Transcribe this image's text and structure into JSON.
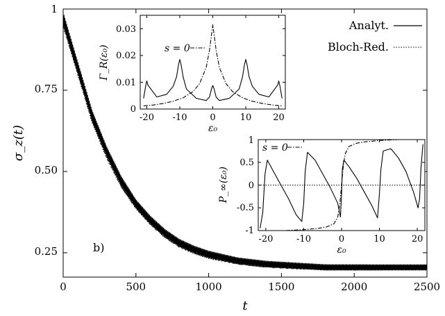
{
  "chart_data": [
    {
      "type": "line",
      "xlabel": "t",
      "ylabel": "σ_z(t)",
      "xlim": [
        0,
        2500
      ],
      "ylim": [
        0.175,
        1.0
      ],
      "xticks": [
        "0",
        "500",
        "1000",
        "1500",
        "2000",
        "2500"
      ],
      "yticks": [
        "0.25",
        "0.50",
        "0.75",
        "1"
      ],
      "panel_label": "b)",
      "legend_position": "top-right",
      "series": [
        {
          "name": "Analyt.",
          "style": "solid",
          "x": [
            0,
            100,
            200,
            300,
            400,
            500,
            600,
            700,
            800,
            900,
            1000,
            1200,
            1400,
            1600,
            1800,
            2000,
            2200,
            2500
          ],
          "y": [
            0.97,
            0.82,
            0.67,
            0.56,
            0.47,
            0.4,
            0.35,
            0.31,
            0.28,
            0.26,
            0.245,
            0.225,
            0.215,
            0.21,
            0.205,
            0.205,
            0.205,
            0.205
          ]
        },
        {
          "name": "Bloch-Red.",
          "style": "dotted",
          "x": [
            0,
            100,
            200,
            300,
            400,
            500,
            600,
            700,
            800,
            900,
            1000,
            1200,
            1400,
            1600,
            1800,
            2000,
            2200,
            2500
          ],
          "y": [
            0.96,
            0.81,
            0.66,
            0.55,
            0.46,
            0.395,
            0.345,
            0.305,
            0.275,
            0.255,
            0.24,
            0.222,
            0.212,
            0.207,
            0.204,
            0.203,
            0.203,
            0.203
          ]
        }
      ]
    },
    {
      "type": "line",
      "xlabel": "ε₀",
      "ylabel": "Γ_R(ε₀)",
      "xlim": [
        -22,
        22
      ],
      "ylim": [
        0,
        0.035
      ],
      "xticks": [
        "-20",
        "-10",
        "0",
        "10",
        "20"
      ],
      "yticks": [
        "0",
        "0.01",
        "0.02",
        "0.03"
      ],
      "legend_position": "top-left",
      "series": [
        {
          "name": "",
          "style": "solid",
          "x": [
            -21,
            -20.3,
            -20,
            -19.7,
            -17,
            -14,
            -12,
            -11,
            -10.4,
            -10,
            -9.6,
            -9,
            -8,
            -5,
            -2,
            -1,
            -0.4,
            0,
            0.4,
            1,
            2,
            5,
            8,
            9,
            9.6,
            10,
            10.4,
            11,
            12,
            14,
            17,
            19.7,
            20,
            20.3,
            21
          ],
          "y": [
            0.004,
            0.009,
            0.0105,
            0.009,
            0.0045,
            0.0055,
            0.0085,
            0.012,
            0.0165,
            0.0185,
            0.0165,
            0.012,
            0.0075,
            0.004,
            0.0032,
            0.0045,
            0.0075,
            0.0088,
            0.0075,
            0.0045,
            0.0032,
            0.004,
            0.0075,
            0.012,
            0.0165,
            0.0185,
            0.0165,
            0.012,
            0.0085,
            0.0055,
            0.0045,
            0.009,
            0.0105,
            0.009,
            0.004
          ]
        },
        {
          "name": "s = 0",
          "style": "dashdot",
          "x": [
            -21,
            -18,
            -15,
            -12,
            -9,
            -6,
            -4,
            -2,
            -1,
            0,
            1,
            2,
            4,
            6,
            9,
            12,
            15,
            18,
            21
          ],
          "y": [
            0.0012,
            0.0015,
            0.0021,
            0.0029,
            0.0042,
            0.0065,
            0.0095,
            0.0155,
            0.022,
            0.0315,
            0.022,
            0.0155,
            0.0095,
            0.0065,
            0.0042,
            0.0029,
            0.0021,
            0.0015,
            0.0012
          ]
        }
      ]
    },
    {
      "type": "line",
      "xlabel": "ε₀",
      "ylabel": "P_∞(ε₀)",
      "xlim": [
        -22,
        22
      ],
      "ylim": [
        -1,
        1
      ],
      "xticks": [
        "-20",
        "-10",
        "0",
        "10",
        "20"
      ],
      "yticks": [
        "-1",
        "-0.5",
        "0",
        "0.5",
        "1"
      ],
      "legend_position": "top-left",
      "series": [
        {
          "name": "",
          "style": "solid",
          "x": [
            -21.5,
            -20.8,
            -20.2,
            -19.6,
            -18,
            -16,
            -14,
            -12,
            -10.5,
            -10,
            -9.6,
            -9,
            -7,
            -5,
            -3,
            -1,
            -0.3,
            0,
            0.2,
            0.6,
            2,
            4,
            6,
            8,
            9.5,
            10,
            10.4,
            11,
            13,
            15,
            17,
            19,
            20.2,
            20.6,
            21,
            21.5
          ],
          "y": [
            -0.95,
            -0.6,
            0.25,
            0.55,
            0.3,
            0.0,
            -0.3,
            -0.65,
            -0.8,
            -0.4,
            0.3,
            0.72,
            0.55,
            0.25,
            -0.05,
            -0.4,
            -0.7,
            -0.2,
            0.35,
            0.55,
            0.4,
            0.15,
            -0.15,
            -0.45,
            -0.72,
            -0.2,
            0.35,
            0.75,
            0.8,
            0.6,
            0.3,
            -0.15,
            -0.5,
            -0.3,
            0.4,
            0.9
          ]
        },
        {
          "name": "s = 0",
          "style": "dashdot",
          "x": [
            -21,
            -15,
            -10,
            -6,
            -4,
            -2,
            -1,
            -0.5,
            0,
            0.5,
            1,
            2,
            4,
            6,
            10,
            15,
            21
          ],
          "y": [
            -1.0,
            -1.0,
            -0.98,
            -0.95,
            -0.92,
            -0.85,
            -0.7,
            -0.45,
            0.0,
            0.45,
            0.7,
            0.85,
            0.92,
            0.95,
            0.98,
            1.0,
            1.0
          ]
        },
        {
          "name": "",
          "style": "dotted",
          "x": [
            -22,
            22
          ],
          "y": [
            0,
            0
          ]
        }
      ]
    }
  ]
}
